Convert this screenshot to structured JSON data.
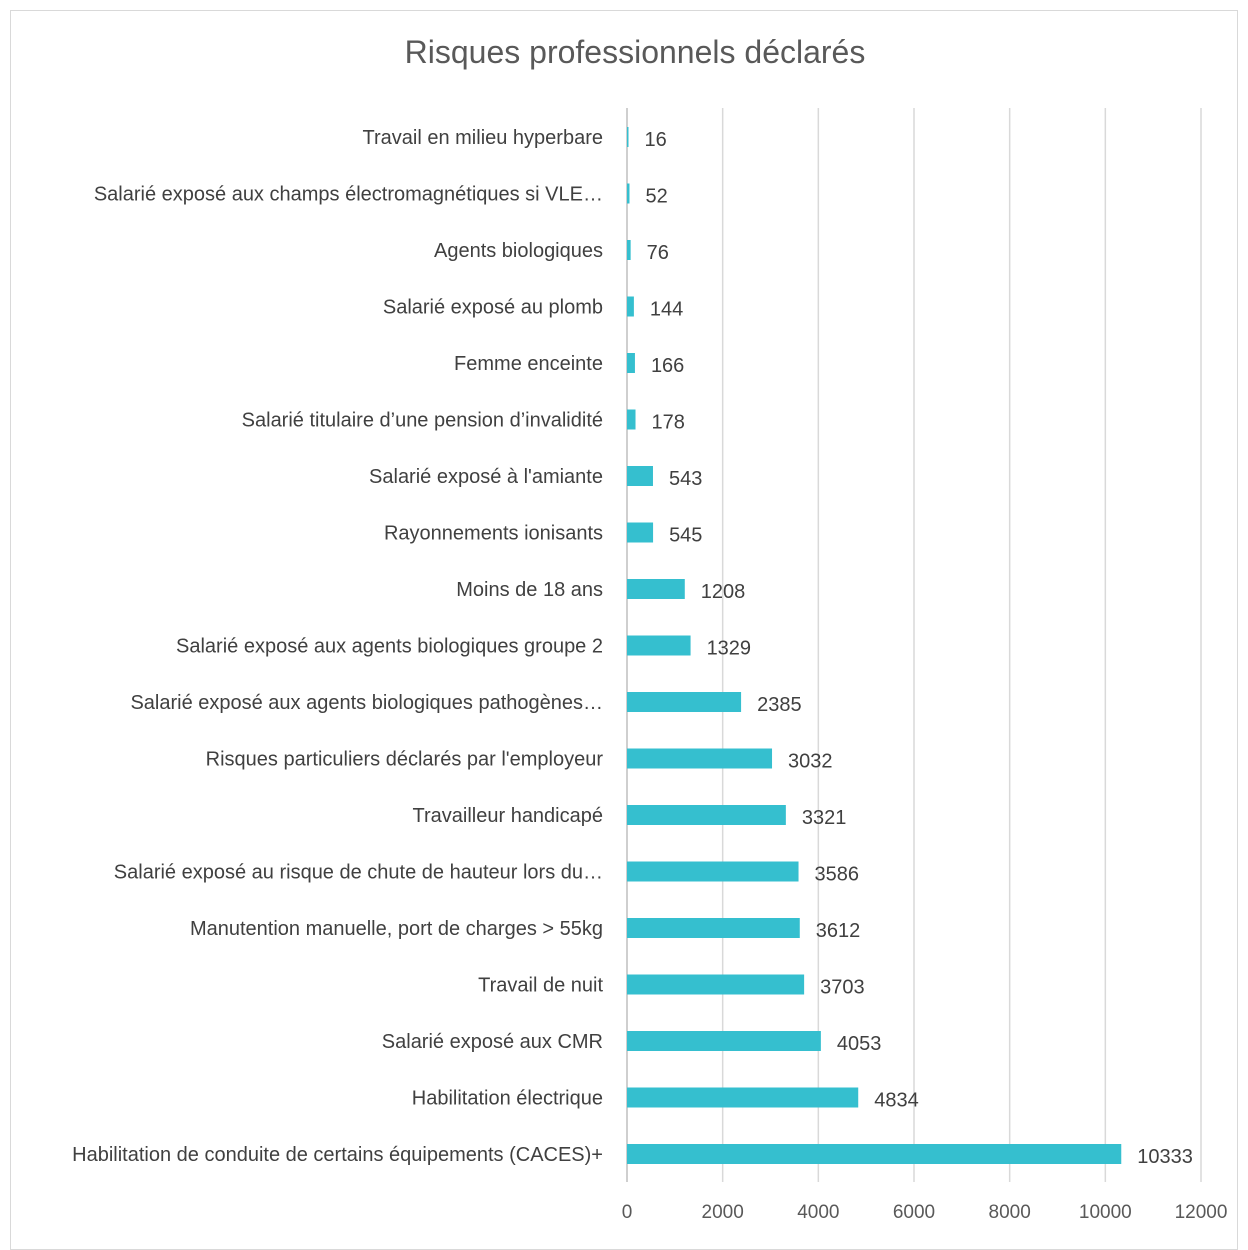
{
  "chart_data": {
    "type": "bar",
    "orientation": "horizontal",
    "title": "Risques professionnels déclarés",
    "xlabel": "",
    "ylabel": "",
    "xlim": [
      0,
      12000
    ],
    "x_ticks": [
      "0",
      "2000",
      "4000",
      "6000",
      "8000",
      "10000",
      "12000"
    ],
    "grid": true,
    "bar_color": "#35BFCF",
    "categories": [
      "Travail en milieu hyperbare",
      "Salarié exposé aux champs électromagnétiques si VLE…",
      "Agents biologiques",
      "Salarié exposé au plomb",
      "Femme enceinte",
      "Salarié titulaire d’une pension d’invalidité",
      "Salarié exposé à l'amiante",
      "Rayonnements ionisants",
      "Moins de 18 ans",
      "Salarié exposé aux agents biologiques groupe 2",
      "Salarié exposé aux agents biologiques pathogènes…",
      "Risques particuliers déclarés par l'employeur",
      "Travailleur handicapé",
      "Salarié exposé au risque de chute de hauteur lors du…",
      "Manutention manuelle, port de charges > 55kg",
      "Travail de nuit",
      "Salarié exposé aux CMR",
      "Habilitation électrique",
      "Habilitation de conduite de certains équipements (CACES)+"
    ],
    "values": [
      16,
      52,
      76,
      144,
      166,
      178,
      543,
      545,
      1208,
      1329,
      2385,
      3032,
      3321,
      3586,
      3612,
      3703,
      4053,
      4834,
      10333
    ],
    "value_labels": [
      "16",
      "52",
      "76",
      "144",
      "166",
      "178",
      "543",
      "545",
      "1208",
      "1329",
      "2385",
      "3032",
      "3321",
      "3586",
      "3612",
      "3703",
      "4053",
      "4834",
      "10333"
    ]
  }
}
